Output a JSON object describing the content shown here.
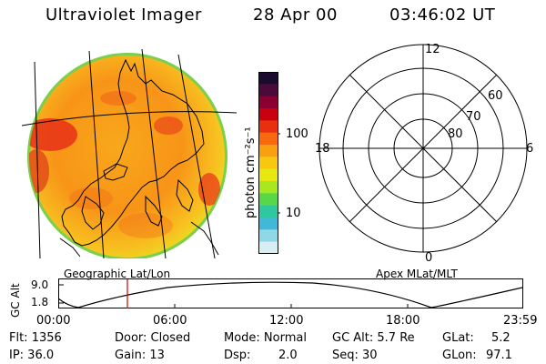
{
  "header": {
    "instrument": "Ultraviolet Imager",
    "date": "28 Apr 00",
    "time": "03:46:02 UT"
  },
  "colorbar": {
    "unit_label": "photon cm⁻²s⁻¹",
    "tick_labels": [
      "100",
      "10"
    ],
    "colors_top_to_bottom": [
      "#1a0a2e",
      "#4a0a3a",
      "#8a0030",
      "#c80010",
      "#e83010",
      "#f86a10",
      "#f8a010",
      "#f8c810",
      "#e8e810",
      "#a8e820",
      "#58d848",
      "#30c8a0",
      "#40b8d8",
      "#90d8e8",
      "#d8eef4"
    ]
  },
  "geographic_panel": {
    "label": "Geographic Lat/Lon"
  },
  "apex_panel": {
    "label": "Apex MLat/MLT",
    "mlt_labels": {
      "top": "12",
      "left": "18",
      "right": "6",
      "bottom": "0"
    },
    "lat_labels": [
      "60",
      "70",
      "80"
    ]
  },
  "orbit_plot": {
    "ylabel": "GC Alt",
    "y_ticks": [
      "9.0",
      "1.8"
    ],
    "x_ticks": [
      "00:00",
      "06:00",
      "12:00",
      "18:00",
      "23:59"
    ],
    "current_marker_color": "#d00000"
  },
  "info": {
    "flt": "Flt: 1356",
    "ip": "IP: 36.0",
    "door": "Door: Closed",
    "gain": "Gain: 13",
    "mode": "Mode: Normal",
    "dsp_label": "Dsp:",
    "dsp_value": "2.0",
    "gc_alt": "GC Alt: 5.7 Re",
    "seq": "Seq: 30",
    "glat_label": "GLat:",
    "glat_value": "5.2",
    "glon_label": "GLon:",
    "glon_value": "97.1"
  }
}
